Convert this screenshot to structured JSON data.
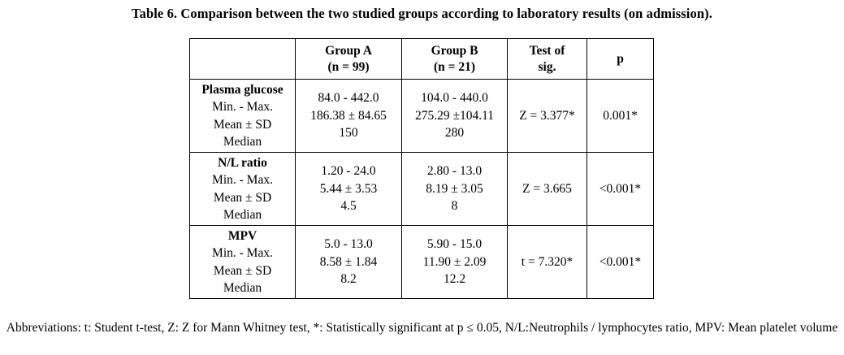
{
  "title": "Table 6. Comparison between the two studied groups according to laboratory results (on admission).",
  "headers": {
    "col1": "",
    "group_a": [
      "Group A",
      "(n = 99)"
    ],
    "group_b": [
      "Group B",
      "(n = 21)"
    ],
    "test": [
      "Test of",
      "sig."
    ],
    "p": "p"
  },
  "groups": [
    {
      "name": "Plasma glucose",
      "labels": [
        "Min. - Max.",
        "Mean ± SD",
        "Median"
      ],
      "group_a": [
        "84.0 - 442.0",
        "186.38 ± 84.65",
        "150"
      ],
      "group_b": [
        "104.0 - 440.0",
        "275.29 ±104.11",
        "280"
      ],
      "test": "Z = 3.377*",
      "p": "0.001*"
    },
    {
      "name": "N/L ratio",
      "labels": [
        "Min. - Max.",
        "Mean ± SD",
        "Median"
      ],
      "group_a": [
        "1.20 - 24.0",
        "5.44 ± 3.53",
        "4.5"
      ],
      "group_b": [
        "2.80 - 13.0",
        "8.19 ± 3.05",
        "8"
      ],
      "test": "Z = 3.665",
      "p": "<0.001*"
    },
    {
      "name": "MPV",
      "labels": [
        "Min. - Max.",
        "Mean ± SD",
        "Median"
      ],
      "group_a": [
        "5.0 - 13.0",
        "8.58 ± 1.84",
        "8.2"
      ],
      "group_b": [
        "5.90 - 15.0",
        "11.90 ± 2.09",
        "12.2"
      ],
      "test": "t = 7.320*",
      "p": "<0.001*"
    }
  ],
  "footnote": "Abbreviations: t: Student t-test, Z: Z for Mann Whitney test, *: Statistically significant at p ≤ 0.05, N/L:Neutrophils / lymphocytes ratio, MPV: Mean platelet volume"
}
